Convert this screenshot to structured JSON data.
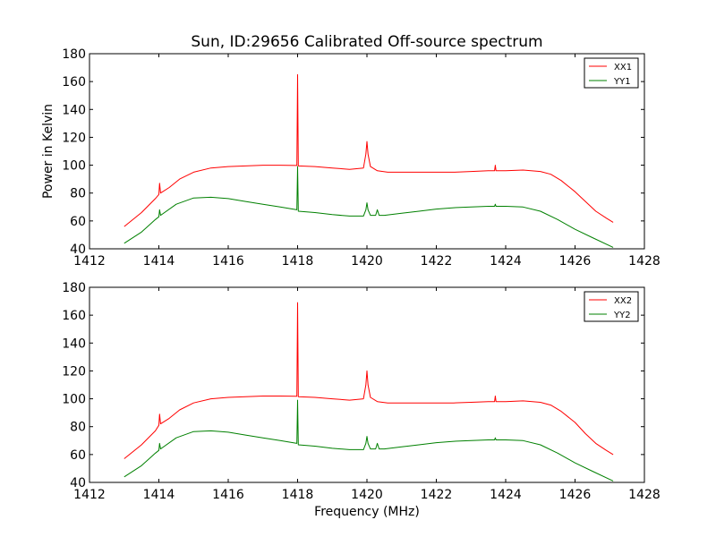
{
  "chart_data": {
    "title": "Sun, ID:29656 Calibrated Off-source spectrum",
    "ylabel": "Power in Kelvin",
    "xlabel": "Frequency (MHz)",
    "panels": [
      {
        "type": "line",
        "xlim": [
          1412,
          1428
        ],
        "ylim": [
          40,
          180
        ],
        "xticks": [
          1412,
          1414,
          1416,
          1418,
          1420,
          1422,
          1424,
          1426,
          1428
        ],
        "yticks": [
          40,
          60,
          80,
          100,
          120,
          140,
          160,
          180
        ],
        "legend": "top-right",
        "series": [
          {
            "name": "XX1",
            "color": "#ff0000",
            "x": [
              1413.0,
              1413.5,
              1413.9,
              1414.0,
              1414.02,
              1414.05,
              1414.3,
              1414.6,
              1415.0,
              1415.5,
              1416.0,
              1416.5,
              1417.0,
              1417.5,
              1417.98,
              1418.0,
              1418.02,
              1418.5,
              1419.0,
              1419.5,
              1419.9,
              1419.97,
              1420.0,
              1420.03,
              1420.1,
              1420.3,
              1420.6,
              1421.0,
              1421.5,
              1422.0,
              1422.5,
              1423.0,
              1423.5,
              1423.68,
              1423.7,
              1423.72,
              1424.0,
              1424.5,
              1425.0,
              1425.3,
              1425.6,
              1426.0,
              1426.3,
              1426.6,
              1426.9,
              1427.1
            ],
            "values": [
              56,
              66,
              76,
              79,
              87,
              80,
              84,
              90,
              95,
              98,
              99,
              99.5,
              100,
              100,
              99.8,
              165,
              99.5,
              99,
              98,
              97,
              98,
              108,
              117,
              108,
              99,
              96,
              95,
              95,
              95,
              95,
              95,
              95.5,
              96,
              96,
              100,
              96,
              96,
              96.5,
              95.5,
              93.5,
              89,
              81,
              74,
              67,
              62,
              59
            ]
          },
          {
            "name": "YY1",
            "color": "#008000",
            "x": [
              1413.0,
              1413.5,
              1413.9,
              1414.0,
              1414.02,
              1414.05,
              1414.5,
              1415.0,
              1415.5,
              1416.0,
              1416.5,
              1417.0,
              1417.5,
              1417.98,
              1418.0,
              1418.02,
              1418.5,
              1419.0,
              1419.5,
              1419.9,
              1419.97,
              1420.0,
              1420.03,
              1420.1,
              1420.25,
              1420.3,
              1420.35,
              1420.5,
              1421.0,
              1421.5,
              1422.0,
              1422.5,
              1423.0,
              1423.5,
              1423.68,
              1423.7,
              1423.72,
              1424.0,
              1424.5,
              1425.0,
              1425.5,
              1426.0,
              1426.5,
              1427.1
            ],
            "values": [
              44,
              52,
              61,
              63,
              68,
              64,
              72,
              76.5,
              77,
              76,
              74,
              72,
              70,
              68,
              99,
              67,
              66,
              64.5,
              63.5,
              63.5,
              68,
              73,
              68,
              64,
              64,
              68,
              64,
              64,
              65.5,
              67,
              68.5,
              69.5,
              70,
              70.5,
              70.5,
              72,
              70.5,
              70.5,
              70,
              67,
              61,
              54,
              48,
              41
            ]
          }
        ]
      },
      {
        "type": "line",
        "xlim": [
          1412,
          1428
        ],
        "ylim": [
          40,
          180
        ],
        "xticks": [
          1412,
          1414,
          1416,
          1418,
          1420,
          1422,
          1424,
          1426,
          1428
        ],
        "yticks": [
          40,
          60,
          80,
          100,
          120,
          140,
          160,
          180
        ],
        "legend": "top-right",
        "series": [
          {
            "name": "XX2",
            "color": "#ff0000",
            "x": [
              1413.0,
              1413.5,
              1413.9,
              1414.0,
              1414.02,
              1414.05,
              1414.3,
              1414.6,
              1415.0,
              1415.5,
              1416.0,
              1416.5,
              1417.0,
              1417.5,
              1417.98,
              1418.0,
              1418.02,
              1418.5,
              1419.0,
              1419.5,
              1419.9,
              1419.97,
              1420.0,
              1420.03,
              1420.1,
              1420.3,
              1420.6,
              1421.0,
              1421.5,
              1422.0,
              1422.5,
              1423.0,
              1423.5,
              1423.68,
              1423.7,
              1423.72,
              1424.0,
              1424.5,
              1425.0,
              1425.3,
              1425.6,
              1426.0,
              1426.3,
              1426.6,
              1426.9,
              1427.1
            ],
            "values": [
              57,
              67,
              77,
              81,
              89,
              82,
              86,
              92,
              97,
              100,
              101,
              101.5,
              102,
              102,
              101.8,
              169,
              101.5,
              101,
              100,
              99,
              100,
              110,
              120,
              110,
              101,
              98,
              97,
              97,
              97,
              97,
              97,
              97.5,
              98,
              98,
              102,
              98,
              98,
              98.5,
              97.5,
              95.5,
              91,
              83,
              75,
              68,
              63,
              60
            ]
          },
          {
            "name": "YY2",
            "color": "#008000",
            "x": [
              1413.0,
              1413.5,
              1413.9,
              1414.0,
              1414.02,
              1414.05,
              1414.5,
              1415.0,
              1415.5,
              1416.0,
              1416.5,
              1417.0,
              1417.5,
              1417.98,
              1418.0,
              1418.02,
              1418.5,
              1419.0,
              1419.5,
              1419.9,
              1419.97,
              1420.0,
              1420.03,
              1420.1,
              1420.25,
              1420.3,
              1420.35,
              1420.5,
              1421.0,
              1421.5,
              1422.0,
              1422.5,
              1423.0,
              1423.5,
              1423.68,
              1423.7,
              1423.72,
              1424.0,
              1424.5,
              1425.0,
              1425.5,
              1426.0,
              1426.5,
              1427.1
            ],
            "values": [
              44,
              52,
              61,
              63,
              68,
              64,
              72,
              76.5,
              77,
              76,
              74,
              72,
              70,
              68,
              99,
              67,
              66,
              64.5,
              63.5,
              63.5,
              68,
              73,
              68,
              64,
              64,
              68,
              64,
              64,
              65.5,
              67,
              68.5,
              69.5,
              70,
              70.5,
              70.5,
              72,
              70.5,
              70.5,
              70,
              67,
              61,
              54,
              48,
              41
            ]
          }
        ]
      }
    ]
  }
}
